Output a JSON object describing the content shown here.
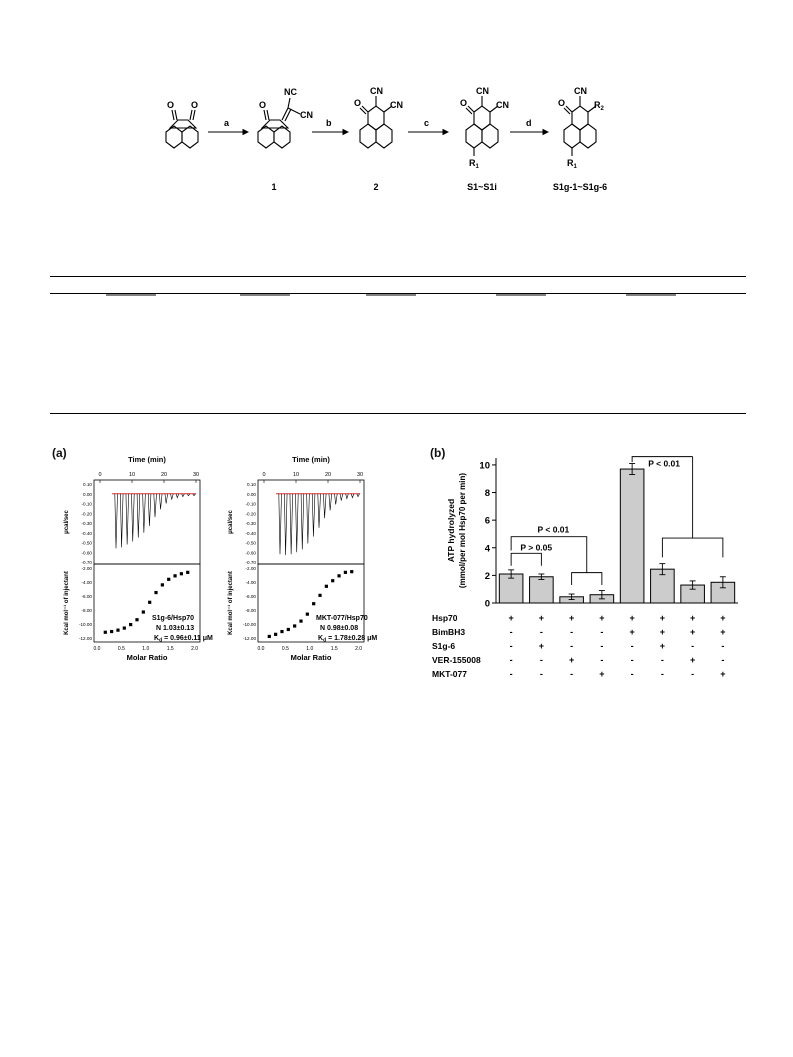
{
  "scheme": {
    "steps": [
      "a",
      "b",
      "c",
      "d"
    ],
    "compound_labels": [
      "1",
      "2",
      "S1~S1i",
      "S1g-1~S1g-6"
    ],
    "atoms": {
      "oxygen": "O",
      "cyano": "CN",
      "isocyano": "NC",
      "r1": "R",
      "r1_sub": "1",
      "r2": "R",
      "r2_sub": "2"
    }
  },
  "figure": {
    "panel_a_label": "(a)",
    "panel_b_label": "(b)",
    "itc": {
      "time_label": "Time (min)",
      "time_ticks": [
        "0",
        "10",
        "20",
        "30"
      ],
      "power_label": "μcal/sec",
      "power_ticks": [
        "0.10",
        "0.00",
        "-0.10",
        "-0.20",
        "-0.30",
        "-0.40",
        "-0.50",
        "-0.60",
        "-0.70"
      ],
      "enthalpy_label": "Kcal mol⁻¹ of injectant",
      "enthalpy_ticks": [
        "-2.00",
        "-4.00",
        "-6.00",
        "-8.00",
        "-10.00",
        "-12.00"
      ],
      "ratio_label": "Molar Ratio",
      "ratio_ticks": [
        "0.0",
        "0.5",
        "1.0",
        "1.5",
        "2.0"
      ],
      "panels": [
        {
          "name": "S1g-6/Hsp70",
          "n_text": "N  1.03±0.13",
          "kd_text": "K",
          "kd_sub": "d",
          "kd_value": "= 0.96±0.11 μM",
          "peak_heights": [
            0.56,
            0.55,
            0.52,
            0.49,
            0.45,
            0.4,
            0.33,
            0.24,
            0.16,
            0.1,
            0.06,
            0.04,
            0.03,
            0.02,
            0.02
          ],
          "points": [
            [
              0.17,
              -11.2
            ],
            [
              0.3,
              -11.1
            ],
            [
              0.43,
              -10.9
            ],
            [
              0.56,
              -10.6
            ],
            [
              0.69,
              -10.1
            ],
            [
              0.82,
              -9.4
            ],
            [
              0.95,
              -8.3
            ],
            [
              1.08,
              -6.9
            ],
            [
              1.21,
              -5.5
            ],
            [
              1.34,
              -4.4
            ],
            [
              1.47,
              -3.6
            ],
            [
              1.6,
              -3.1
            ],
            [
              1.73,
              -2.8
            ],
            [
              1.86,
              -2.6
            ]
          ]
        },
        {
          "name": "MKT-077/Hsp70",
          "n_text": "N  0.98±0.08",
          "kd_text": "K",
          "kd_sub": "d",
          "kd_value": "= 1.78±0.28 μM",
          "peak_heights": [
            0.62,
            0.63,
            0.62,
            0.6,
            0.57,
            0.51,
            0.44,
            0.35,
            0.25,
            0.17,
            0.11,
            0.07,
            0.05,
            0.04,
            0.03
          ],
          "points": [
            [
              0.17,
              -11.8
            ],
            [
              0.3,
              -11.5
            ],
            [
              0.43,
              -11.1
            ],
            [
              0.56,
              -10.8
            ],
            [
              0.69,
              -10.3
            ],
            [
              0.82,
              -9.6
            ],
            [
              0.95,
              -8.6
            ],
            [
              1.08,
              -7.1
            ],
            [
              1.21,
              -5.9
            ],
            [
              1.34,
              -4.6
            ],
            [
              1.47,
              -3.8
            ],
            [
              1.6,
              -3.1
            ],
            [
              1.73,
              -2.6
            ],
            [
              1.86,
              -2.5
            ]
          ]
        }
      ]
    }
  },
  "chart_data": {
    "type": "bar",
    "ylabel": "ATP hydrolyzed",
    "ylabel_unit": "(mmol/per mol Hsp70 per min)",
    "ylim": [
      0,
      10.5
    ],
    "yticks": [
      "0",
      "2",
      "4",
      "6",
      "8",
      "10"
    ],
    "values": [
      2.1,
      1.9,
      0.45,
      0.6,
      9.7,
      2.45,
      1.3,
      1.5
    ],
    "errors": [
      0.3,
      0.2,
      0.2,
      0.3,
      0.4,
      0.4,
      0.3,
      0.4
    ],
    "color": "#cccccc",
    "annotations": [
      "P > 0.05",
      "P < 0.01",
      "P < 0.01"
    ],
    "conditions": [
      {
        "name": "Hsp70",
        "signs": [
          "+",
          "+",
          "+",
          "+",
          "+",
          "+",
          "+",
          "+"
        ]
      },
      {
        "name": "BimBH3",
        "signs": [
          "-",
          "-",
          "-",
          "-",
          "+",
          "+",
          "+",
          "+"
        ]
      },
      {
        "name": "S1g-6",
        "signs": [
          "-",
          "+",
          "-",
          "-",
          "-",
          "+",
          "-",
          "-"
        ]
      },
      {
        "name": "VER-155008",
        "signs": [
          "-",
          "-",
          "+",
          "-",
          "-",
          "-",
          "+",
          "-"
        ]
      },
      {
        "name": "MKT-077",
        "signs": [
          "-",
          "-",
          "-",
          "+",
          "-",
          "-",
          "-",
          "+"
        ]
      }
    ]
  }
}
